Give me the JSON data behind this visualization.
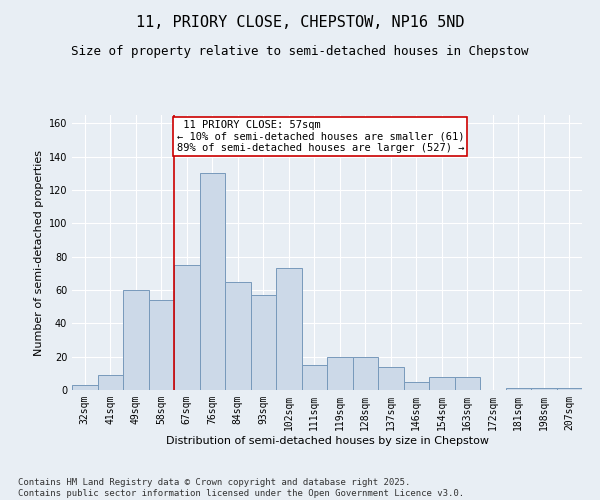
{
  "title": "11, PRIORY CLOSE, CHEPSTOW, NP16 5ND",
  "subtitle": "Size of property relative to semi-detached houses in Chepstow",
  "xlabel": "Distribution of semi-detached houses by size in Chepstow",
  "ylabel": "Number of semi-detached properties",
  "categories": [
    "32sqm",
    "41sqm",
    "49sqm",
    "58sqm",
    "67sqm",
    "76sqm",
    "84sqm",
    "93sqm",
    "102sqm",
    "111sqm",
    "119sqm",
    "128sqm",
    "137sqm",
    "146sqm",
    "154sqm",
    "163sqm",
    "172sqm",
    "181sqm",
    "198sqm",
    "207sqm"
  ],
  "values": [
    3,
    9,
    60,
    54,
    75,
    130,
    65,
    57,
    73,
    15,
    20,
    20,
    14,
    5,
    8,
    8,
    0,
    1,
    1,
    1
  ],
  "bar_color": "#ccd9e8",
  "bar_edge_color": "#7799bb",
  "property_line_x": 3.5,
  "property_label": "11 PRIORY CLOSE: 57sqm",
  "pct_smaller": "10% of semi-detached houses are smaller (61)",
  "pct_larger": "89% of semi-detached houses are larger (527)",
  "annotation_box_color": "#cc0000",
  "ylim": [
    0,
    165
  ],
  "yticks": [
    0,
    20,
    40,
    60,
    80,
    100,
    120,
    140,
    160
  ],
  "footnote": "Contains HM Land Registry data © Crown copyright and database right 2025.\nContains public sector information licensed under the Open Government Licence v3.0.",
  "background_color": "#e8eef4",
  "plot_background": "#e8eef4",
  "grid_color": "#ffffff",
  "title_fontsize": 11,
  "subtitle_fontsize": 9,
  "label_fontsize": 8,
  "tick_fontsize": 7,
  "footnote_fontsize": 6.5,
  "annotation_fontsize": 7.5
}
